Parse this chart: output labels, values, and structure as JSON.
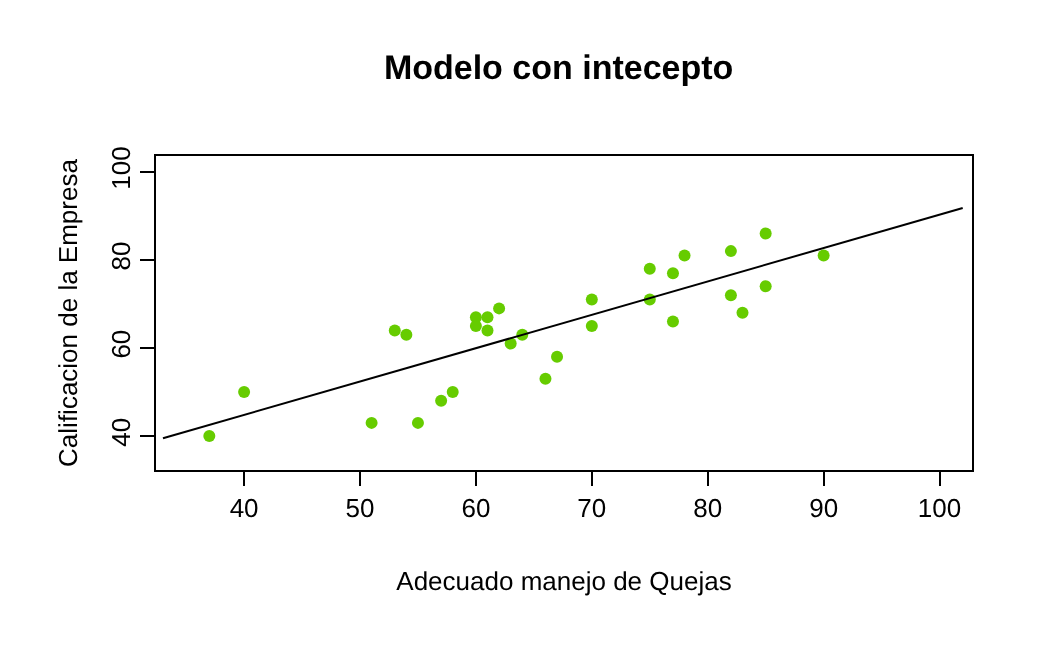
{
  "chart_data": {
    "type": "scatter",
    "title": "Modelo con intecepto",
    "xlabel": "Adecuado manejo de Quejas",
    "ylabel": "Calificacion de la Empresa",
    "xlim": [
      32.4,
      102.8
    ],
    "ylim": [
      32.3,
      103.6
    ],
    "xticks": [
      40,
      50,
      60,
      70,
      80,
      90,
      100
    ],
    "yticks": [
      40,
      60,
      80,
      100
    ],
    "grid": false,
    "marker": "circle",
    "series": [
      {
        "type": "scatter",
        "color": "#66cc00",
        "x": [
          37,
          40,
          51,
          53,
          54,
          55,
          57,
          58,
          60,
          60,
          61,
          61,
          62,
          63,
          64,
          66,
          67,
          70,
          70,
          75,
          75,
          77,
          77,
          78,
          82,
          82,
          83,
          85,
          85,
          90
        ],
        "values": [
          40,
          50,
          43,
          64,
          63,
          43,
          48,
          50,
          67,
          65,
          67,
          64,
          69,
          61,
          63,
          53,
          58,
          71,
          65,
          78,
          71,
          77,
          66,
          81,
          82,
          72,
          68,
          86,
          74,
          81
        ]
      },
      {
        "type": "line",
        "color": "#000000",
        "line_style": "solid",
        "marker": "none",
        "x": [
          33,
          102
        ],
        "values": [
          39.5,
          91.8
        ]
      }
    ]
  }
}
